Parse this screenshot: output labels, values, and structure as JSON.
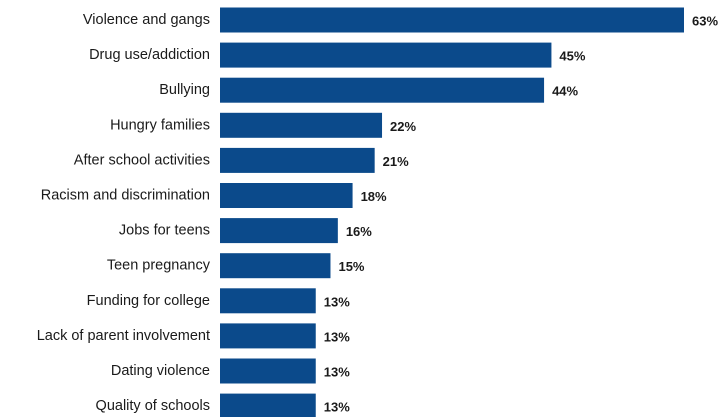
{
  "chart_data": {
    "type": "bar",
    "orientation": "horizontal",
    "categories": [
      "Violence and gangs",
      "Drug use/addiction",
      "Bullying",
      "Hungry families",
      "After school activities",
      "Racism and discrimination",
      "Jobs for teens",
      "Teen pregnancy",
      "Funding for college",
      "Lack of parent involvement",
      "Dating violence",
      "Quality of schools"
    ],
    "values": [
      63,
      45,
      44,
      22,
      21,
      18,
      16,
      15,
      13,
      13,
      13,
      13
    ],
    "value_labels": [
      "63%",
      "45%",
      "44%",
      "22%",
      "21%",
      "18%",
      "16%",
      "15%",
      "13%",
      "13%",
      "13%",
      "13%"
    ],
    "bar_color": "#0b4a8b",
    "xlim": [
      0,
      63
    ],
    "grid": false,
    "legend": "none"
  }
}
